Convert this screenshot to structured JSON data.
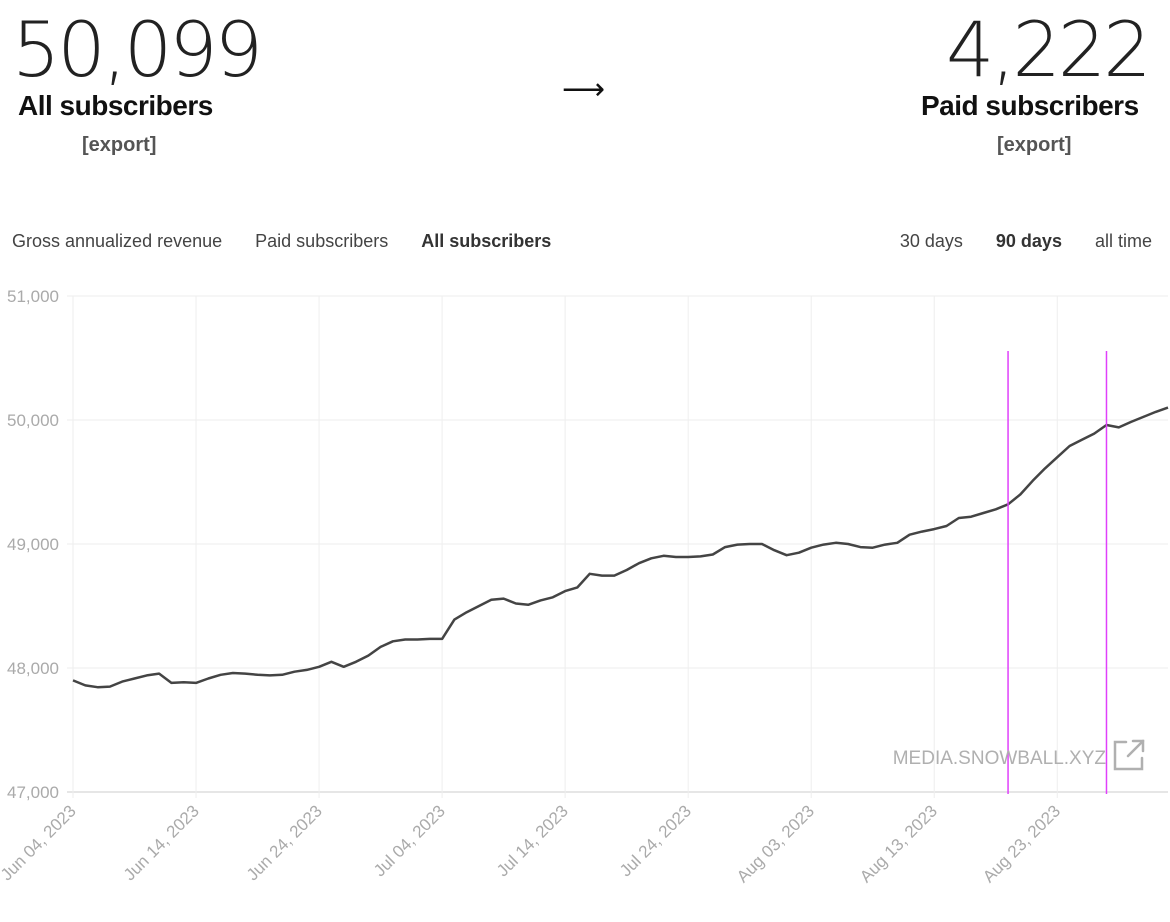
{
  "stats": {
    "all": {
      "value": "50,099",
      "label": "All subscribers",
      "export": "[export]"
    },
    "arrow": "⟶",
    "paid": {
      "value": "4,222",
      "label": "Paid subscribers",
      "export": "[export]"
    }
  },
  "metric_tabs": [
    {
      "label": "Gross annualized revenue",
      "active": false
    },
    {
      "label": "Paid subscribers",
      "active": false
    },
    {
      "label": "All subscribers",
      "active": true
    }
  ],
  "range_tabs": [
    {
      "label": "30 days",
      "active": false
    },
    {
      "label": "90 days",
      "active": true
    },
    {
      "label": "all time",
      "active": false
    }
  ],
  "watermark": "MEDIA.SNOWBALL.XYZ",
  "colors": {
    "line": "#444444",
    "marker": "#e040fb",
    "grid": "#eeeeee",
    "axis_text": "#aaaaaa"
  },
  "chart_data": {
    "type": "line",
    "xlabel": "",
    "ylabel": "",
    "ylim": [
      47000,
      51000
    ],
    "yticks": [
      "51,000",
      "50,000",
      "49,000",
      "48,000",
      "47,000"
    ],
    "xticks": [
      "Jun 04, 2023",
      "Jun 14, 2023",
      "Jun 24, 2023",
      "Jul 04, 2023",
      "Jul 14, 2023",
      "Jul 24, 2023",
      "Aug 03, 2023",
      "Aug 13, 2023",
      "Aug 23, 2023"
    ],
    "x_start": "2023-06-04",
    "x_end": "2023-09-01",
    "grid": true,
    "markers": [
      "2023-08-19",
      "2023-08-27"
    ],
    "series": [
      {
        "values": [
          47900,
          47860,
          47845,
          47850,
          47890,
          47915,
          47940,
          47955,
          47880,
          47885,
          47880,
          47915,
          47945,
          47960,
          47955,
          47945,
          47940,
          47945,
          47970,
          47985,
          48010,
          48050,
          48010,
          48050,
          48100,
          48170,
          48215,
          48230,
          48230,
          48235,
          48235,
          48390,
          48450,
          48500,
          48550,
          48560,
          48520,
          48510,
          48545,
          48570,
          48620,
          48650,
          48760,
          48745,
          48745,
          48790,
          48845,
          48885,
          48905,
          48895,
          48895,
          48900,
          48915,
          48975,
          48995,
          49000,
          49000,
          48950,
          48910,
          48930,
          48970,
          48995,
          49010,
          49000,
          48975,
          48970,
          48995,
          49010,
          49075,
          49100,
          49120,
          49145,
          49210,
          49220,
          49250,
          49280,
          49320,
          49400,
          49510,
          49610,
          49700,
          49790,
          49840,
          49890,
          49960,
          49940,
          49985,
          50025,
          50065,
          50100
        ]
      }
    ]
  }
}
